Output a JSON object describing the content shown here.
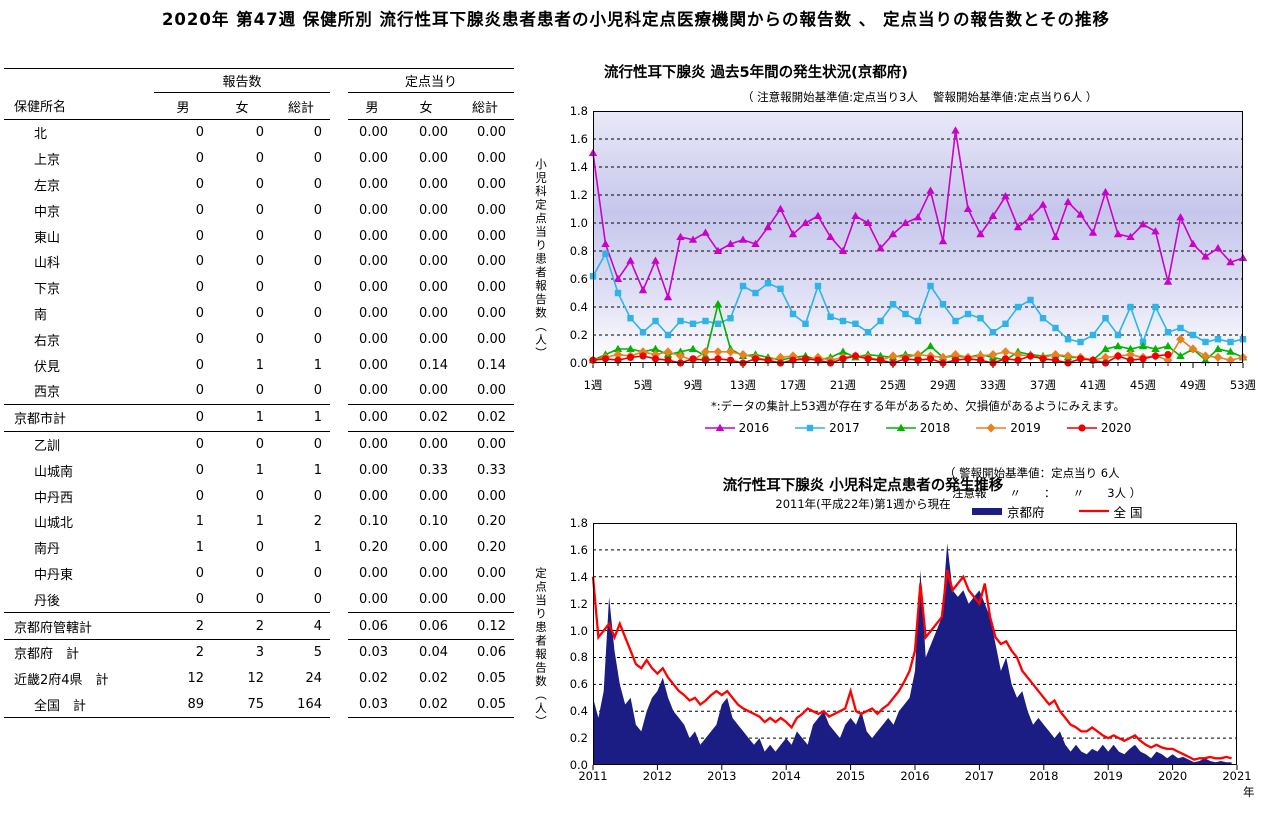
{
  "page_title": "2020年 第47週 保健所別 流行性耳下腺炎患者患者の小児科定点医療機関からの報告数 、 定点当りの報告数とその推移",
  "table": {
    "group_headers": {
      "report": "報告数",
      "per_sentinel": "定点当り"
    },
    "name_header": "保健所名",
    "sub_headers": {
      "male": "男",
      "female": "女",
      "total": "総計"
    },
    "rows": [
      {
        "name": "北",
        "type": "item",
        "report": [
          "0",
          "0",
          "0"
        ],
        "rate": [
          "0.00",
          "0.00",
          "0.00"
        ]
      },
      {
        "name": "上京",
        "type": "item",
        "report": [
          "0",
          "0",
          "0"
        ],
        "rate": [
          "0.00",
          "0.00",
          "0.00"
        ]
      },
      {
        "name": "左京",
        "type": "item",
        "report": [
          "0",
          "0",
          "0"
        ],
        "rate": [
          "0.00",
          "0.00",
          "0.00"
        ]
      },
      {
        "name": "中京",
        "type": "item",
        "report": [
          "0",
          "0",
          "0"
        ],
        "rate": [
          "0.00",
          "0.00",
          "0.00"
        ]
      },
      {
        "name": "東山",
        "type": "item",
        "report": [
          "0",
          "0",
          "0"
        ],
        "rate": [
          "0.00",
          "0.00",
          "0.00"
        ]
      },
      {
        "name": "山科",
        "type": "item",
        "report": [
          "0",
          "0",
          "0"
        ],
        "rate": [
          "0.00",
          "0.00",
          "0.00"
        ]
      },
      {
        "name": "下京",
        "type": "item",
        "report": [
          "0",
          "0",
          "0"
        ],
        "rate": [
          "0.00",
          "0.00",
          "0.00"
        ]
      },
      {
        "name": "南",
        "type": "item",
        "report": [
          "0",
          "0",
          "0"
        ],
        "rate": [
          "0.00",
          "0.00",
          "0.00"
        ]
      },
      {
        "name": "右京",
        "type": "item",
        "report": [
          "0",
          "0",
          "0"
        ],
        "rate": [
          "0.00",
          "0.00",
          "0.00"
        ]
      },
      {
        "name": "伏見",
        "type": "item",
        "report": [
          "0",
          "1",
          "1"
        ],
        "rate": [
          "0.00",
          "0.14",
          "0.14"
        ]
      },
      {
        "name": "西京",
        "type": "item",
        "report": [
          "0",
          "0",
          "0"
        ],
        "rate": [
          "0.00",
          "0.00",
          "0.00"
        ]
      },
      {
        "name": "京都市計",
        "type": "subtotal",
        "report": [
          "0",
          "1",
          "1"
        ],
        "rate": [
          "0.00",
          "0.02",
          "0.02"
        ]
      },
      {
        "name": "乙訓",
        "type": "item",
        "report": [
          "0",
          "0",
          "0"
        ],
        "rate": [
          "0.00",
          "0.00",
          "0.00"
        ]
      },
      {
        "name": "山城南",
        "type": "item",
        "report": [
          "0",
          "1",
          "1"
        ],
        "rate": [
          "0.00",
          "0.33",
          "0.33"
        ]
      },
      {
        "name": "中丹西",
        "type": "item",
        "report": [
          "0",
          "0",
          "0"
        ],
        "rate": [
          "0.00",
          "0.00",
          "0.00"
        ]
      },
      {
        "name": "山城北",
        "type": "item",
        "report": [
          "1",
          "1",
          "2"
        ],
        "rate": [
          "0.10",
          "0.10",
          "0.20"
        ]
      },
      {
        "name": "南丹",
        "type": "item",
        "report": [
          "1",
          "0",
          "1"
        ],
        "rate": [
          "0.20",
          "0.00",
          "0.20"
        ]
      },
      {
        "name": "中丹東",
        "type": "item",
        "report": [
          "0",
          "0",
          "0"
        ],
        "rate": [
          "0.00",
          "0.00",
          "0.00"
        ]
      },
      {
        "name": "丹後",
        "type": "item",
        "report": [
          "0",
          "0",
          "0"
        ],
        "rate": [
          "0.00",
          "0.00",
          "0.00"
        ]
      },
      {
        "name": "京都府管轄計",
        "type": "subtotal",
        "report": [
          "2",
          "2",
          "4"
        ],
        "rate": [
          "0.06",
          "0.06",
          "0.12"
        ]
      },
      {
        "name": "京都府　計",
        "type": "total",
        "report": [
          "2",
          "3",
          "5"
        ],
        "rate": [
          "0.03",
          "0.04",
          "0.06"
        ]
      },
      {
        "name": "近畿2府4県　計",
        "type": "total",
        "report": [
          "12",
          "12",
          "24"
        ],
        "rate": [
          "0.02",
          "0.02",
          "0.05"
        ]
      },
      {
        "name": "全国　計",
        "type": "total-last",
        "report": [
          "89",
          "75",
          "164"
        ],
        "rate": [
          "0.03",
          "0.02",
          "0.05"
        ]
      }
    ]
  },
  "chart1": {
    "title": "流行性耳下腺炎 過去5年間の発生状況(京都府)",
    "subtitle": "（ 注意報開始基準値:定点当り3人　 警報開始基準値:定点当り6人 ）",
    "ylabel": "小児科定点当り患者報告数（人）",
    "note": "*:データの集計上53週が存在する年があるため、欠損値があるようにみえます。",
    "x_ticks": [
      "1週",
      "5週",
      "9週",
      "13週",
      "17週",
      "21週",
      "25週",
      "29週",
      "33週",
      "37週",
      "41週",
      "45週",
      "49週",
      "53週"
    ],
    "y_ticks": [
      "1.8",
      "1.6",
      "1.4",
      "1.2",
      "1.0",
      "0.8",
      "0.6",
      "0.4",
      "0.2",
      "0.0"
    ]
  },
  "chart2": {
    "title": "流行性耳下腺炎  小児科定点患者の発生推移",
    "subtitle": "2011年(平成22年)第1週から現在",
    "annotation_line1": "（  警報開始基準値：定点当り 6人",
    "annotation_line2": "注意報　　〃　　：　　〃　　3人  ）",
    "ylabel": "定点当り患者報告数（人）",
    "x_ticks": [
      "2011",
      "2012",
      "2013",
      "2014",
      "2015",
      "2016",
      "2017",
      "2018",
      "2019",
      "2020",
      "2021"
    ],
    "x_axis_unit": "年",
    "y_ticks": [
      "1.8",
      "1.6",
      "1.4",
      "1.2",
      "1.0",
      "0.8",
      "0.6",
      "0.4",
      "0.2",
      "0.0"
    ]
  },
  "chart_data": [
    {
      "type": "line",
      "title": "流行性耳下腺炎 過去5年間の発生状況(京都府)",
      "x_unit": "week",
      "x_range": [
        1,
        53
      ],
      "ylim": [
        0,
        1.8
      ],
      "grid": "dashed-0.2",
      "legend_position": "bottom",
      "series": [
        {
          "name": "2016",
          "color": "#cc00cc",
          "marker": "triangle",
          "values": [
            1.5,
            0.85,
            0.6,
            0.73,
            0.52,
            0.73,
            0.47,
            0.9,
            0.88,
            0.93,
            0.8,
            0.85,
            0.88,
            0.85,
            0.97,
            1.1,
            0.92,
            1.0,
            1.05,
            0.9,
            0.8,
            1.05,
            1.0,
            0.82,
            0.92,
            1.0,
            1.04,
            1.23,
            0.87,
            1.66,
            1.1,
            0.92,
            1.05,
            1.19,
            0.97,
            1.04,
            1.13,
            0.9,
            1.15,
            1.06,
            0.93,
            1.22,
            0.92,
            0.9,
            0.99,
            0.94,
            0.58,
            1.04,
            0.85,
            0.76,
            0.82,
            0.72,
            0.75
          ]
        },
        {
          "name": "2017",
          "color": "#2fb4e9",
          "marker": "square",
          "values": [
            0.62,
            0.78,
            0.5,
            0.32,
            0.22,
            0.3,
            0.2,
            0.3,
            0.28,
            0.3,
            0.28,
            0.32,
            0.55,
            0.5,
            0.57,
            0.53,
            0.35,
            0.28,
            0.55,
            0.33,
            0.3,
            0.28,
            0.22,
            0.3,
            0.42,
            0.35,
            0.3,
            0.55,
            0.42,
            0.3,
            0.35,
            0.32,
            0.22,
            0.28,
            0.4,
            0.45,
            0.32,
            0.25,
            0.17,
            0.15,
            0.2,
            0.32,
            0.2,
            0.4,
            0.15,
            0.4,
            0.22,
            0.25,
            0.2,
            0.15,
            0.17,
            0.15,
            0.17
          ]
        },
        {
          "name": "2018",
          "color": "#00b400",
          "marker": "triangle",
          "values": [
            0.02,
            0.06,
            0.1,
            0.1,
            0.08,
            0.1,
            0.06,
            0.08,
            0.1,
            0.05,
            0.42,
            0.1,
            0.05,
            0.06,
            0.04,
            0.02,
            0.04,
            0.05,
            0.02,
            0.04,
            0.08,
            0.04,
            0.06,
            0.05,
            0.04,
            0.06,
            0.05,
            0.12,
            0.04,
            0.05,
            0.04,
            0.06,
            0.04,
            0.02,
            0.08,
            0.06,
            0.05,
            0.06,
            0.04,
            0.04,
            0.02,
            0.1,
            0.12,
            0.1,
            0.12,
            0.1,
            0.12,
            0.05,
            0.1,
            0.02,
            0.1,
            0.08,
            0.04
          ]
        },
        {
          "name": "2019",
          "color": "#e8821e",
          "marker": "diamond",
          "values": [
            0.02,
            0.04,
            0.06,
            0.05,
            0.08,
            0.06,
            0.08,
            0.05,
            0.02,
            0.08,
            0.08,
            0.08,
            0.06,
            0.04,
            0.02,
            0.04,
            0.05,
            0.02,
            0.04,
            0.02,
            0.04,
            0.05,
            0.04,
            0.02,
            0.05,
            0.04,
            0.06,
            0.05,
            0.04,
            0.06,
            0.04,
            0.05,
            0.06,
            0.08,
            0.06,
            0.05,
            0.04,
            0.06,
            0.05,
            0.04,
            0.02,
            0.04,
            0.05,
            0.06,
            0.04,
            0.05,
            0.02,
            0.17,
            0.1,
            0.05,
            0.04,
            0.02,
            0.04
          ]
        },
        {
          "name": "2020",
          "color": "#ee0000",
          "marker": "circle",
          "values": [
            0.02,
            0.03,
            0.02,
            0.04,
            0.05,
            0.03,
            0.02,
            0.0,
            0.03,
            0.02,
            0.03,
            0.02,
            0.0,
            0.03,
            0.02,
            0.0,
            0.02,
            0.03,
            0.02,
            0.0,
            0.03,
            0.05,
            0.03,
            0.02,
            0.0,
            0.03,
            0.02,
            0.03,
            0.0,
            0.02,
            0.03,
            0.02,
            0.0,
            0.03,
            0.02,
            0.05,
            0.03,
            0.02,
            0.0,
            0.03,
            0.02,
            0.0,
            0.05,
            0.02,
            0.03,
            0.05,
            0.06
          ]
        }
      ]
    },
    {
      "type": "area+line",
      "title": "流行性耳下腺炎  小児科定点患者の発生推移",
      "x_range": [
        2011,
        2021
      ],
      "points_per_year": 12,
      "ylim": [
        0,
        1.8
      ],
      "grid": "dashed-0.2-solid-1.0",
      "series": [
        {
          "name": "京都府",
          "style": "area",
          "color": "#1c1c85",
          "values": [
            0.5,
            0.35,
            0.55,
            1.25,
            0.85,
            0.6,
            0.45,
            0.5,
            0.3,
            0.25,
            0.4,
            0.5,
            0.55,
            0.65,
            0.5,
            0.4,
            0.35,
            0.3,
            0.2,
            0.25,
            0.15,
            0.2,
            0.25,
            0.3,
            0.45,
            0.5,
            0.35,
            0.3,
            0.25,
            0.2,
            0.15,
            0.2,
            0.1,
            0.15,
            0.1,
            0.15,
            0.2,
            0.15,
            0.25,
            0.2,
            0.15,
            0.3,
            0.35,
            0.4,
            0.3,
            0.25,
            0.2,
            0.3,
            0.35,
            0.3,
            0.4,
            0.25,
            0.2,
            0.25,
            0.3,
            0.35,
            0.3,
            0.4,
            0.45,
            0.5,
            0.7,
            1.45,
            0.8,
            0.9,
            1.0,
            1.1,
            1.65,
            1.3,
            1.25,
            1.3,
            1.2,
            1.25,
            1.3,
            1.2,
            1.1,
            0.9,
            0.7,
            0.8,
            0.6,
            0.5,
            0.55,
            0.4,
            0.3,
            0.35,
            0.3,
            0.25,
            0.2,
            0.25,
            0.15,
            0.1,
            0.15,
            0.1,
            0.08,
            0.12,
            0.1,
            0.15,
            0.1,
            0.15,
            0.1,
            0.08,
            0.12,
            0.15,
            0.1,
            0.08,
            0.05,
            0.1,
            0.08,
            0.05,
            0.08,
            0.05,
            0.06,
            0.04,
            0.02,
            0.03,
            0.05,
            0.03,
            0.02,
            0.03,
            0.02,
            0.02
          ]
        },
        {
          "name": "全  国",
          "style": "line",
          "color": "#ff0000",
          "values": [
            1.4,
            0.95,
            1.0,
            1.05,
            0.95,
            1.05,
            0.95,
            0.85,
            0.75,
            0.72,
            0.78,
            0.72,
            0.68,
            0.72,
            0.65,
            0.6,
            0.55,
            0.52,
            0.48,
            0.5,
            0.45,
            0.48,
            0.52,
            0.55,
            0.52,
            0.55,
            0.5,
            0.45,
            0.42,
            0.4,
            0.38,
            0.36,
            0.32,
            0.35,
            0.32,
            0.35,
            0.32,
            0.28,
            0.35,
            0.38,
            0.42,
            0.4,
            0.38,
            0.4,
            0.36,
            0.38,
            0.4,
            0.42,
            0.55,
            0.4,
            0.38,
            0.4,
            0.42,
            0.38,
            0.42,
            0.45,
            0.5,
            0.55,
            0.62,
            0.7,
            0.85,
            1.35,
            0.95,
            1.0,
            1.05,
            1.1,
            1.45,
            1.3,
            1.35,
            1.4,
            1.3,
            1.25,
            1.2,
            1.35,
            1.1,
            0.95,
            0.9,
            0.92,
            0.85,
            0.8,
            0.7,
            0.65,
            0.6,
            0.55,
            0.5,
            0.45,
            0.48,
            0.4,
            0.35,
            0.3,
            0.28,
            0.25,
            0.25,
            0.28,
            0.25,
            0.22,
            0.2,
            0.22,
            0.2,
            0.18,
            0.2,
            0.22,
            0.18,
            0.15,
            0.13,
            0.15,
            0.13,
            0.12,
            0.12,
            0.1,
            0.08,
            0.06,
            0.04,
            0.05,
            0.05,
            0.06,
            0.05,
            0.05,
            0.06,
            0.05
          ]
        }
      ]
    }
  ]
}
